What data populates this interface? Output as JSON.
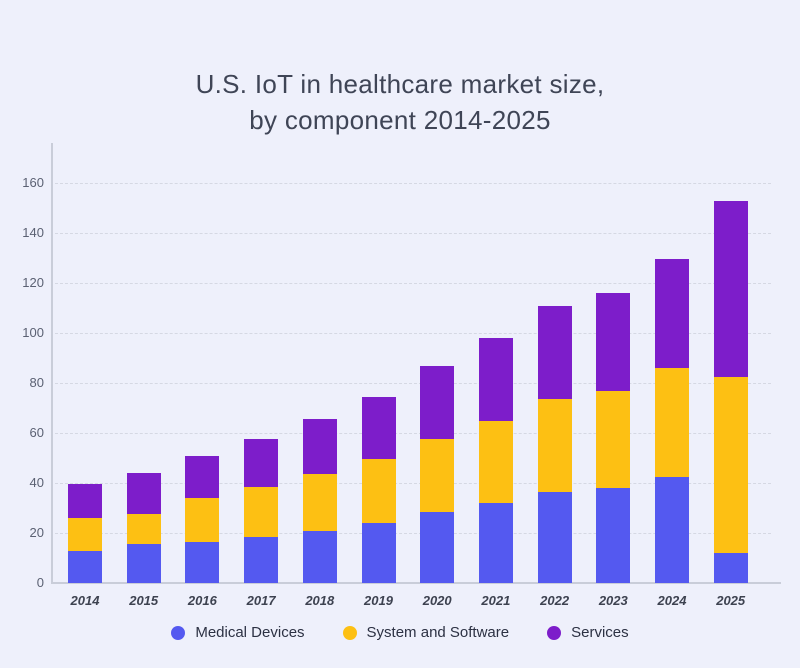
{
  "title": {
    "line1": "U.S. IoT in healthcare market size,",
    "line2": "by component 2014-2025"
  },
  "chart_data": {
    "type": "bar",
    "stacked": true,
    "title": "U.S. IoT in healthcare market size, by component 2014-2025",
    "categories": [
      "2014",
      "2015",
      "2016",
      "2017",
      "2018",
      "2019",
      "2020",
      "2021",
      "2022",
      "2023",
      "2024",
      "2025"
    ],
    "series": [
      {
        "name": "Medical Devices",
        "color": "#5459f0",
        "values": [
          13,
          15.5,
          16.5,
          18.5,
          21,
          24,
          28.5,
          32,
          36.5,
          38,
          42.5,
          12
        ]
      },
      {
        "name": "System and Software",
        "color": "#fdc013",
        "values": [
          13,
          12,
          17.5,
          20,
          22.5,
          25.5,
          29,
          33,
          37,
          39,
          43.5,
          70.5
        ]
      },
      {
        "name": "Services",
        "color": "#7d1dca",
        "values": [
          13.5,
          16.5,
          17,
          19,
          22,
          25,
          29.5,
          33,
          37.5,
          39,
          43.5,
          70.5
        ]
      }
    ],
    "totals": [
      39.5,
      44,
      51,
      57.5,
      65.5,
      74.5,
      87,
      98,
      111,
      116,
      129.5,
      153
    ],
    "ylim": [
      0,
      160
    ],
    "yticks": [
      0,
      20,
      40,
      60,
      80,
      100,
      120,
      140,
      160
    ],
    "xlabel": "",
    "ylabel": "",
    "grid": "horizontal-dashed",
    "legend_position": "bottom"
  },
  "colors": {
    "background": "#eef0fb",
    "axis_line": "#c9cdd9",
    "gridline": "#d5d8e3",
    "title_text": "#3f4556",
    "tick_text": "#5b6173",
    "year_text": "#3d4250",
    "legend_text": "#2c3143"
  }
}
